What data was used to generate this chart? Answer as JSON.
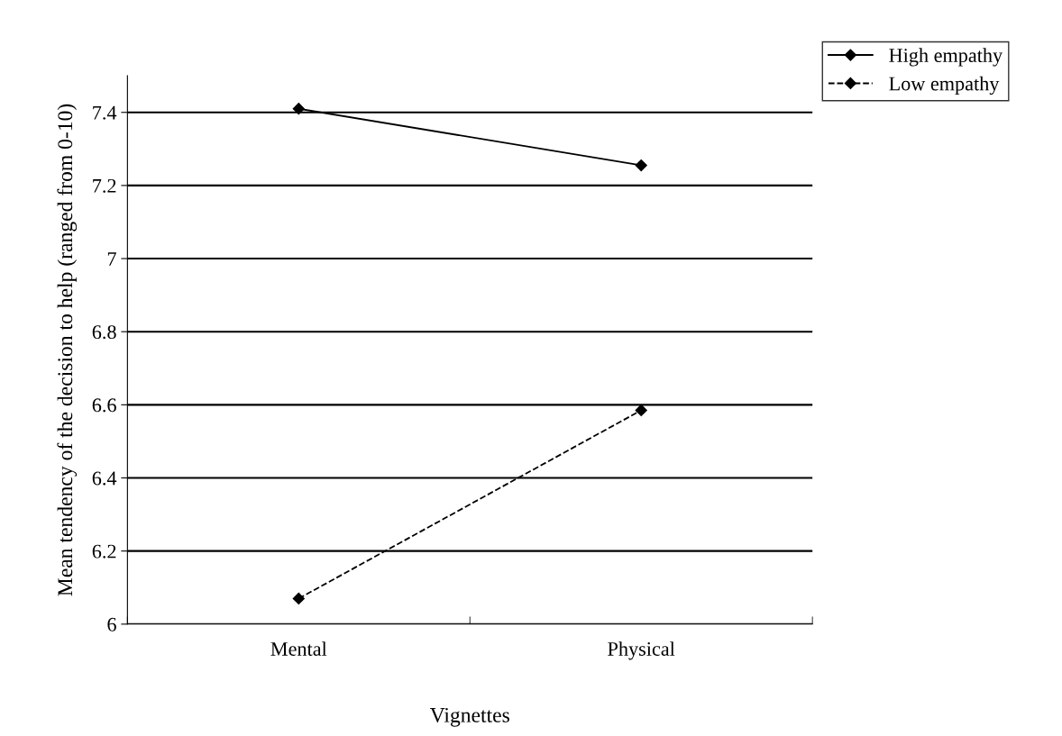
{
  "chart_data": {
    "type": "line",
    "xlabel": "Vignettes",
    "ylabel": "Mean tendency of the decision to help (ranged from 0-10)",
    "categories": [
      "Mental",
      "Physical"
    ],
    "series": [
      {
        "name": "High empathy",
        "color": "#000000",
        "values": [
          7.41,
          7.255
        ],
        "line_style": "solid"
      },
      {
        "name": "Low empathy",
        "color": "#000000",
        "values": [
          6.07,
          6.585
        ],
        "line_style": "dashed"
      }
    ],
    "ylim": [
      6,
      7.5
    ],
    "yticks": [
      6,
      6.2,
      6.4,
      6.6,
      6.8,
      7,
      7.2,
      7.4
    ],
    "grid": "y",
    "legend": "top right",
    "marker": "diamond"
  }
}
